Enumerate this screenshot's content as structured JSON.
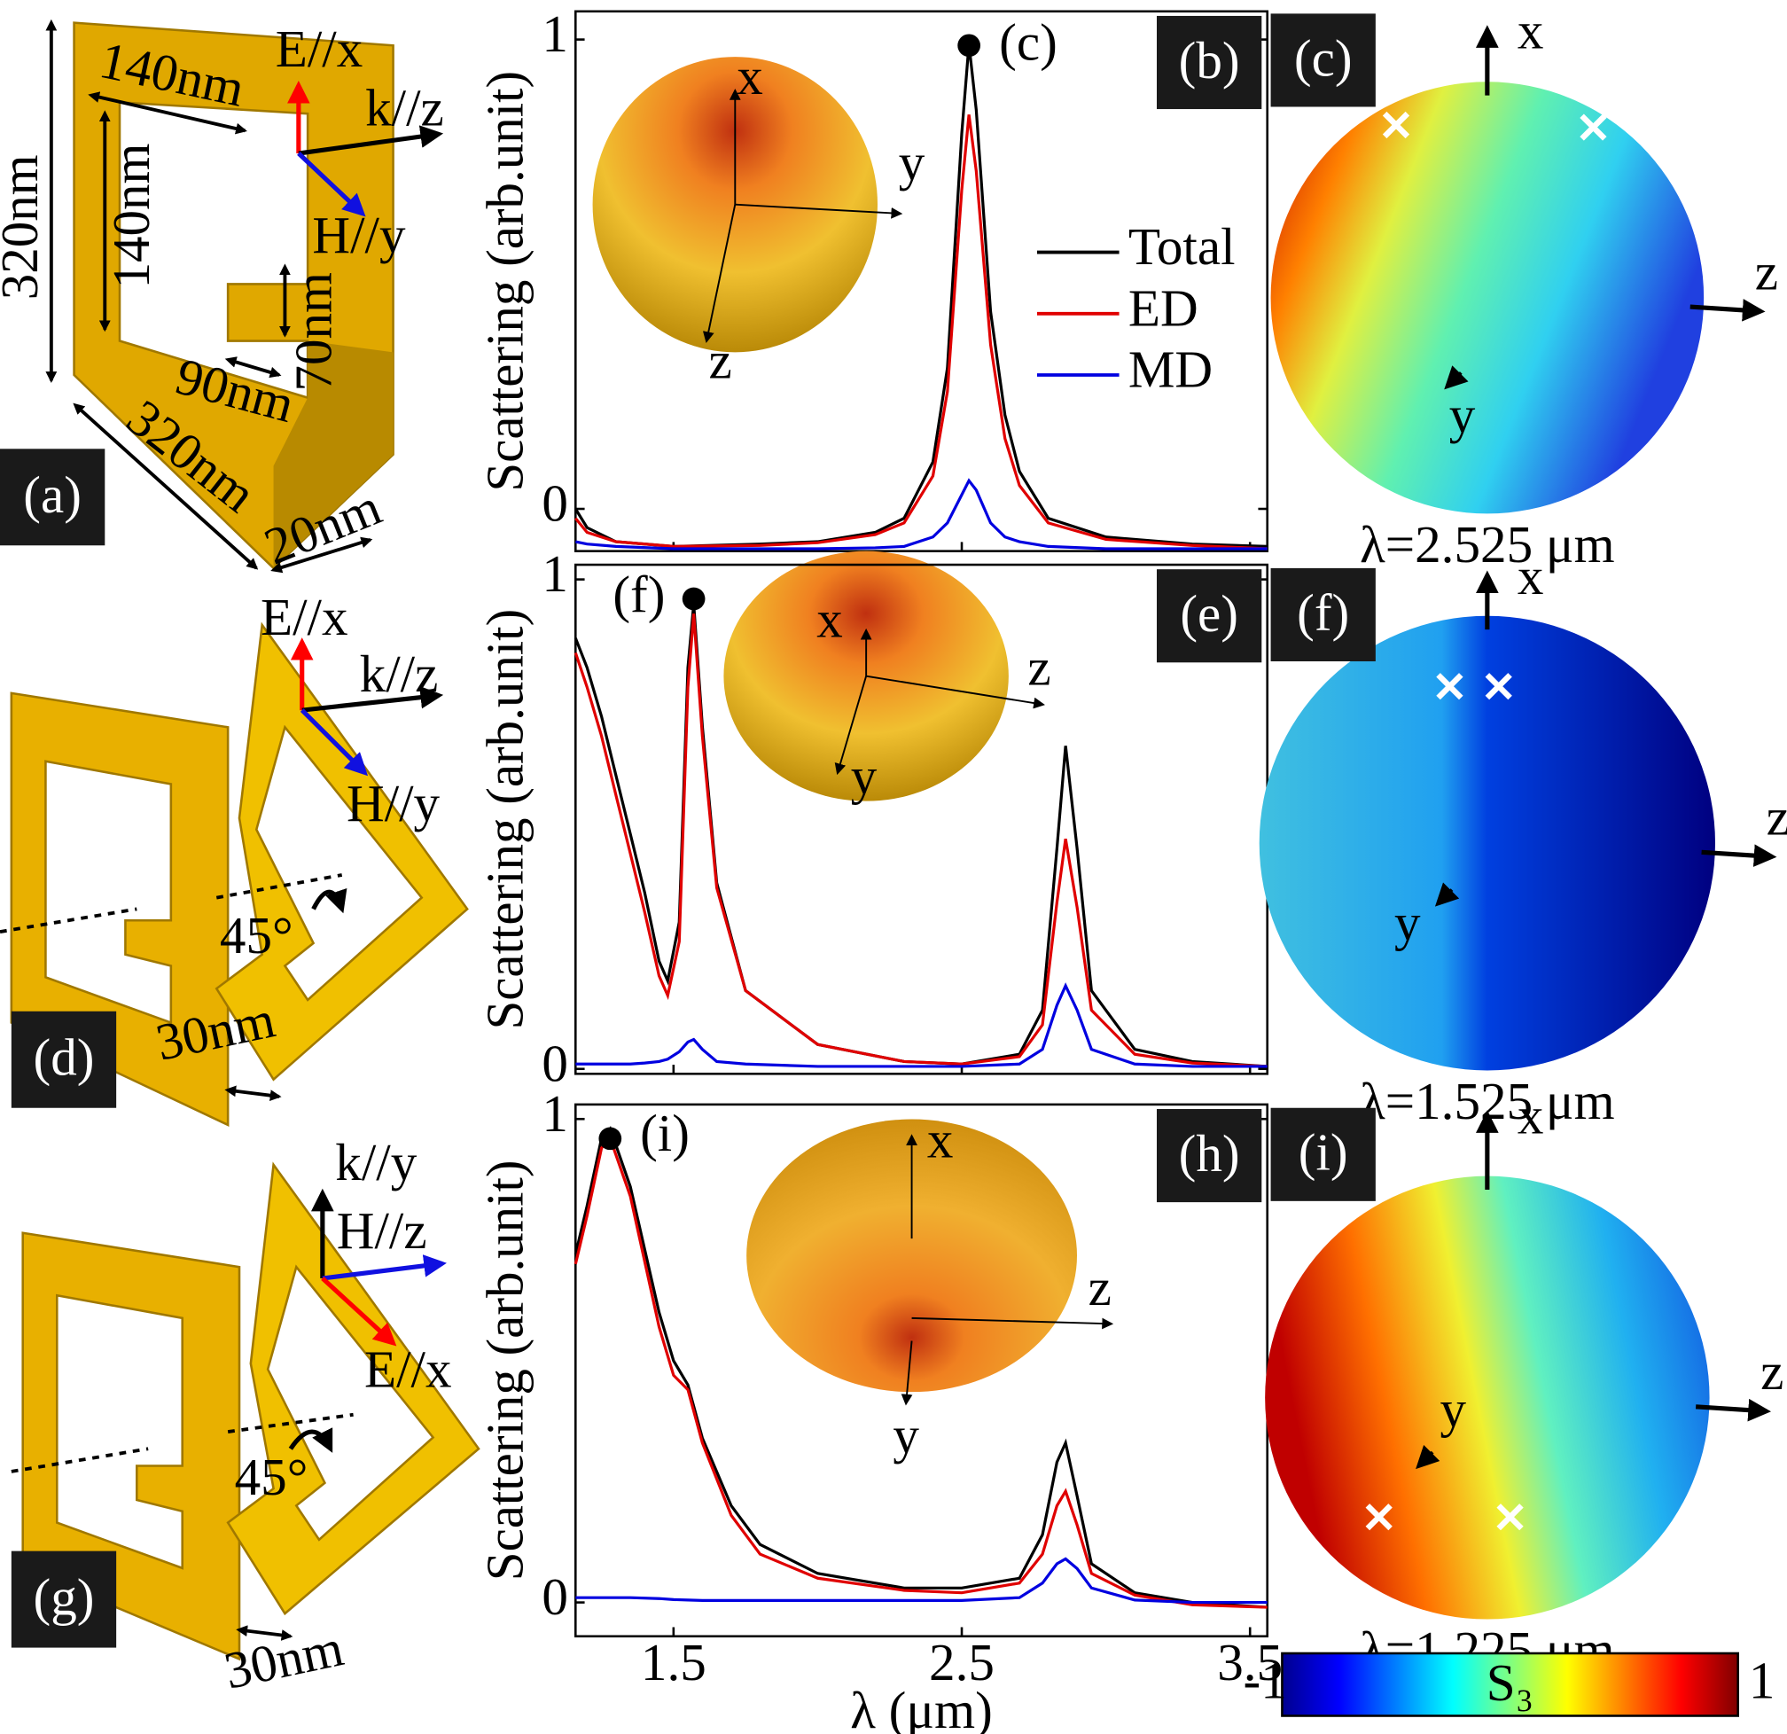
{
  "chart_data": [
    {
      "type": "line",
      "ylabel": "Scattering (arb.unit)",
      "panel_label": "(b)",
      "peak_label": "(c)",
      "inset_axes": [
        "x",
        "y",
        "z"
      ],
      "legend": true,
      "xlim": [
        1.16,
        3.56
      ],
      "ylim": [
        -0.09,
        1.06
      ],
      "xticks": [
        1.5,
        2.5,
        3.5
      ],
      "yticks": [
        0,
        1
      ],
      "x": [
        1.16,
        1.2,
        1.3,
        1.5,
        1.8,
        2.0,
        2.2,
        2.3,
        2.4,
        2.45,
        2.5,
        2.525,
        2.55,
        2.6,
        2.65,
        2.7,
        2.8,
        3.0,
        3.3,
        3.56
      ],
      "series": [
        {
          "name": "Total",
          "color": "#000000",
          "values": [
            0.0,
            -0.04,
            -0.07,
            -0.08,
            -0.075,
            -0.07,
            -0.05,
            -0.02,
            0.1,
            0.3,
            0.8,
            0.99,
            0.85,
            0.42,
            0.2,
            0.08,
            -0.02,
            -0.06,
            -0.075,
            -0.08
          ]
        },
        {
          "name": "ED",
          "color": "#e00000",
          "values": [
            -0.02,
            -0.05,
            -0.07,
            -0.08,
            -0.078,
            -0.072,
            -0.055,
            -0.03,
            0.07,
            0.25,
            0.68,
            0.84,
            0.72,
            0.35,
            0.15,
            0.05,
            -0.03,
            -0.065,
            -0.078,
            -0.085
          ]
        },
        {
          "name": "MD",
          "color": "#0000e0",
          "values": [
            -0.07,
            -0.075,
            -0.08,
            -0.085,
            -0.085,
            -0.085,
            -0.083,
            -0.08,
            -0.06,
            -0.03,
            0.03,
            0.06,
            0.04,
            -0.03,
            -0.06,
            -0.07,
            -0.08,
            -0.085,
            -0.085,
            -0.085
          ]
        }
      ]
    },
    {
      "type": "line",
      "ylabel": "Scattering (arb.unit)",
      "panel_label": "(e)",
      "peak_label": "(f)",
      "inset_axes": [
        "x",
        "z",
        "y"
      ],
      "xlim": [
        1.16,
        3.56
      ],
      "ylim": [
        -0.01,
        1.03
      ],
      "xticks": [
        1.5,
        2.5,
        3.5
      ],
      "yticks": [
        0,
        1
      ],
      "x": [
        1.16,
        1.2,
        1.25,
        1.3,
        1.35,
        1.4,
        1.45,
        1.48,
        1.52,
        1.55,
        1.57,
        1.6,
        1.65,
        1.75,
        2.0,
        2.3,
        2.5,
        2.7,
        2.78,
        2.83,
        2.86,
        2.9,
        2.95,
        3.1,
        3.3,
        3.56
      ],
      "series": [
        {
          "color": "#000000",
          "values": [
            0.88,
            0.82,
            0.72,
            0.6,
            0.48,
            0.36,
            0.22,
            0.18,
            0.3,
            0.82,
            0.95,
            0.7,
            0.38,
            0.16,
            0.05,
            0.015,
            0.01,
            0.03,
            0.12,
            0.45,
            0.66,
            0.45,
            0.16,
            0.04,
            0.015,
            0.005
          ]
        },
        {
          "color": "#e00000",
          "values": [
            0.85,
            0.78,
            0.68,
            0.56,
            0.44,
            0.32,
            0.19,
            0.15,
            0.26,
            0.78,
            0.93,
            0.68,
            0.37,
            0.16,
            0.05,
            0.015,
            0.01,
            0.025,
            0.09,
            0.34,
            0.47,
            0.33,
            0.12,
            0.03,
            0.012,
            0.005
          ]
        },
        {
          "color": "#0000e0",
          "values": [
            0.01,
            0.01,
            0.01,
            0.01,
            0.01,
            0.012,
            0.015,
            0.02,
            0.035,
            0.055,
            0.06,
            0.04,
            0.015,
            0.01,
            0.005,
            0.005,
            0.005,
            0.01,
            0.04,
            0.13,
            0.17,
            0.12,
            0.04,
            0.01,
            0.005,
            0.005
          ]
        }
      ]
    },
    {
      "type": "line",
      "ylabel": "Scattering (arb.unit)",
      "xlabel": "λ (μm)",
      "panel_label": "(h)",
      "peak_label": "(i)",
      "inset_axes": [
        "x",
        "z",
        "y"
      ],
      "xlim": [
        1.16,
        3.56
      ],
      "ylim": [
        -0.07,
        1.03
      ],
      "xticks": [
        1.5,
        2.5,
        3.5
      ],
      "yticks": [
        0,
        1
      ],
      "x": [
        1.16,
        1.2,
        1.25,
        1.28,
        1.35,
        1.45,
        1.5,
        1.55,
        1.6,
        1.7,
        1.8,
        2.0,
        2.3,
        2.5,
        2.7,
        2.78,
        2.83,
        2.86,
        2.9,
        2.95,
        3.1,
        3.3,
        3.56
      ],
      "series": [
        {
          "color": "#000000",
          "values": [
            0.72,
            0.82,
            0.96,
            0.98,
            0.86,
            0.6,
            0.5,
            0.45,
            0.34,
            0.2,
            0.12,
            0.06,
            0.03,
            0.03,
            0.05,
            0.14,
            0.29,
            0.33,
            0.22,
            0.08,
            0.02,
            0.0,
            -0.01
          ]
        },
        {
          "color": "#e00000",
          "values": [
            0.7,
            0.8,
            0.94,
            0.96,
            0.84,
            0.57,
            0.47,
            0.44,
            0.33,
            0.18,
            0.1,
            0.05,
            0.025,
            0.02,
            0.04,
            0.1,
            0.2,
            0.23,
            0.16,
            0.06,
            0.015,
            -0.005,
            -0.01
          ]
        },
        {
          "color": "#0000e0",
          "values": [
            0.01,
            0.01,
            0.01,
            0.01,
            0.01,
            0.008,
            0.006,
            0.005,
            0.004,
            0.004,
            0.004,
            0.004,
            0.004,
            0.004,
            0.01,
            0.04,
            0.08,
            0.09,
            0.07,
            0.03,
            0.005,
            0.0,
            0.0
          ]
        }
      ]
    }
  ],
  "structures": [
    {
      "label": "(a)",
      "dims": [
        "320nm",
        "140nm",
        "140nm",
        "70nm",
        "90nm",
        "320nm",
        "20nm"
      ],
      "fields": [
        "E//x",
        "k//z",
        "H//y"
      ]
    },
    {
      "label": "(d)",
      "fields": [
        "E//x",
        "k//z",
        "H//y"
      ],
      "angle": "45°",
      "gap": "30nm"
    },
    {
      "label": "(g)",
      "fields": [
        "k//y",
        "H//z",
        "E//x"
      ],
      "angle": "45°",
      "gap": "30nm"
    }
  ],
  "maps": [
    {
      "label": "(c)",
      "axes": [
        "x",
        "z",
        "y"
      ],
      "wavelength": "λ=2.525 μm"
    },
    {
      "label": "(f)",
      "axes": [
        "x",
        "z",
        "y"
      ],
      "wavelength": "λ=1.525 μm"
    },
    {
      "label": "(i)",
      "axes": [
        "x",
        "z",
        "y"
      ],
      "wavelength": "λ=1.225 μm"
    }
  ],
  "colorbar": {
    "min_label": "-1",
    "title": "S₃",
    "max_label": "1"
  }
}
